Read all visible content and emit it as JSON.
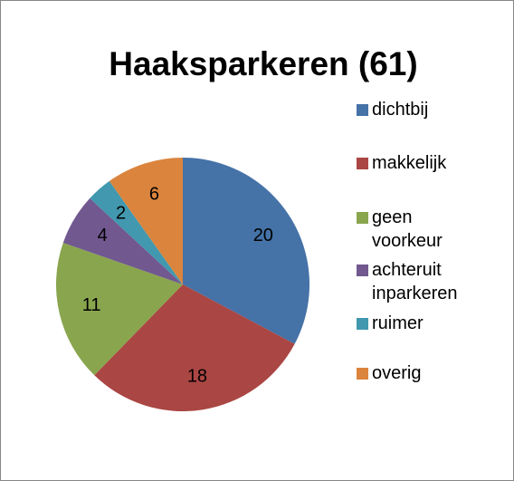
{
  "chart_data": {
    "type": "pie",
    "title": "Haaksparkeren (61)",
    "categories": [
      "dichtbij",
      "makkelijk",
      "geen voorkeur",
      "achteruit inparkeren",
      "ruimer",
      "overig"
    ],
    "values": [
      20,
      18,
      11,
      4,
      2,
      6
    ],
    "colors": [
      "#4572a7",
      "#aa4643",
      "#89a54e",
      "#71588f",
      "#4198af",
      "#db843d"
    ],
    "legend": "right"
  }
}
